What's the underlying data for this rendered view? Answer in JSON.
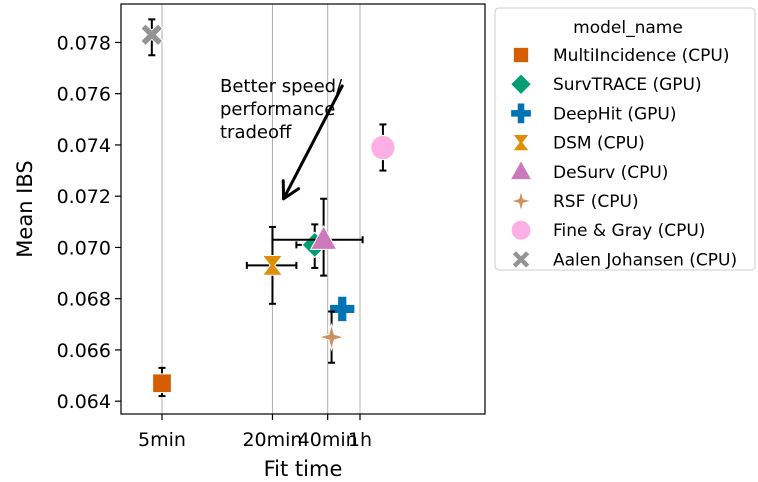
{
  "chart_data": {
    "type": "scatter",
    "title": "",
    "xlabel": "Fit time",
    "ylabel": "Mean IBS",
    "x_scale": "log",
    "x_ticks": [
      {
        "label": "5min",
        "value_min": 5
      },
      {
        "label": "20min",
        "value_min": 20
      },
      {
        "label": "40min",
        "value_min": 40
      },
      {
        "label": "1h",
        "value_min": 60
      }
    ],
    "y_ticks": [
      "0.064",
      "0.066",
      "0.068",
      "0.070",
      "0.072",
      "0.074",
      "0.076",
      "0.078"
    ],
    "ylim": [
      0.0635,
      0.0795
    ],
    "grid": "vertical",
    "legend_title": "model_name",
    "legend_position": "outside-right",
    "annotation": {
      "lines": [
        "Better speed/",
        "performance",
        "tradeoff"
      ],
      "arrow": {
        "from": {
          "x_min": 48,
          "y": 0.0763
        },
        "to": {
          "x_min": 23,
          "y": 0.0719
        }
      }
    },
    "series": [
      {
        "name": "MultiIncidence (CPU)",
        "color": "#d55e00",
        "marker": "square",
        "x": 5,
        "y": 0.0647,
        "x_err": null,
        "y_err": [
          0.0642,
          0.0653
        ]
      },
      {
        "name": "SurvTRACE (GPU)",
        "color": "#029e73",
        "marker": "diamond",
        "x": 34,
        "y": 0.0701,
        "x_err": [
          27,
          40
        ],
        "y_err": [
          0.0692,
          0.0709
        ]
      },
      {
        "name": "DeepHit (GPU)",
        "color": "#0173b2",
        "marker": "plus",
        "x": 48,
        "y": 0.0676,
        "x_err": null,
        "y_err": null
      },
      {
        "name": "DSM (CPU)",
        "color": "#de8f05",
        "marker": "hourglass",
        "x": 20,
        "y": 0.0693,
        "x_err": [
          14.5,
          27
        ],
        "y_err": [
          0.0678,
          0.0708
        ]
      },
      {
        "name": "DeSurv (CPU)",
        "color": "#cc78bc",
        "marker": "triangle",
        "x": 38,
        "y": 0.0703,
        "x_err": [
          20,
          62
        ],
        "y_err": [
          0.0689,
          0.0719
        ]
      },
      {
        "name": "RSF (CPU)",
        "color": "#ca9161",
        "marker": "star4",
        "x": 42,
        "y": 0.0665,
        "x_err": null,
        "y_err": [
          0.0655,
          0.0675
        ]
      },
      {
        "name": "Fine & Gray (CPU)",
        "color": "#fbafe4",
        "marker": "circle",
        "x": 80,
        "y": 0.0739,
        "x_err": null,
        "y_err": [
          0.073,
          0.0748
        ]
      },
      {
        "name": "Aalen Johansen (CPU)",
        "color": "#949494",
        "marker": "x",
        "x": 4.4,
        "y": 0.0783,
        "x_err": null,
        "y_err": [
          0.0775,
          0.0789
        ]
      }
    ]
  }
}
